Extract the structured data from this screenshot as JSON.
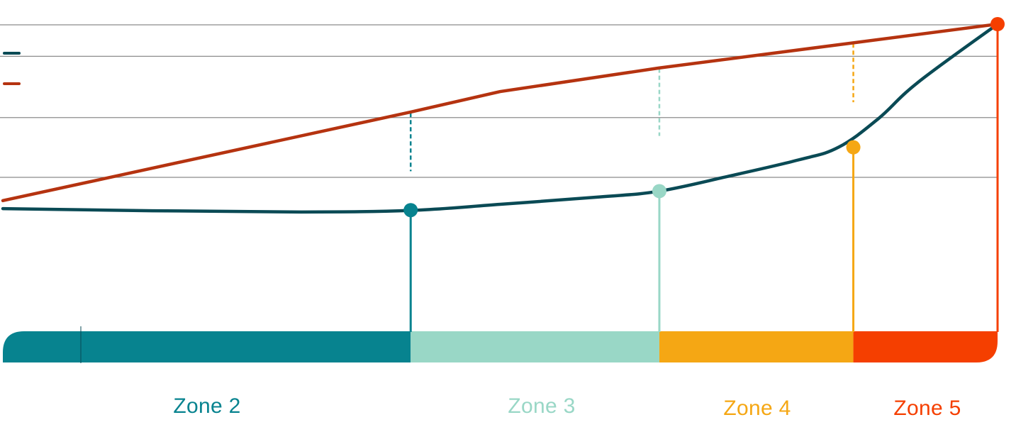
{
  "chart_data": {
    "type": "line",
    "title": "",
    "xlabel": "",
    "ylabel": "",
    "x_range": [
      0,
      100
    ],
    "y_range": [
      0,
      100
    ],
    "grid": true,
    "gridlines_y": [
      50,
      69.5,
      89.5,
      109.5
    ],
    "series": [
      {
        "name": "",
        "color": "#0a4a55",
        "style": "smooth",
        "points": [
          {
            "x": 0,
            "y": 39.8
          },
          {
            "x": 15,
            "y": 39.1
          },
          {
            "x": 30,
            "y": 38.7
          },
          {
            "x": 41,
            "y": 39.2
          },
          {
            "x": 50,
            "y": 41.2
          },
          {
            "x": 60,
            "y": 43.6
          },
          {
            "x": 66,
            "y": 45.5
          },
          {
            "x": 73,
            "y": 50.4
          },
          {
            "x": 80,
            "y": 55.7
          },
          {
            "x": 84,
            "y": 59.8
          },
          {
            "x": 88,
            "y": 69.1
          },
          {
            "x": 92,
            "y": 81.0
          },
          {
            "x": 100,
            "y": 100.0
          }
        ]
      },
      {
        "name": "",
        "color": "#b53310",
        "style": "straight",
        "points": [
          {
            "x": 0,
            "y": 42.4
          },
          {
            "x": 41,
            "y": 71.3
          },
          {
            "x": 50,
            "y": 78.0
          },
          {
            "x": 66,
            "y": 85.7
          },
          {
            "x": 85.5,
            "y": 93.9
          },
          {
            "x": 100,
            "y": 100.0
          }
        ]
      }
    ],
    "markers": [
      {
        "x": 41,
        "y": 39.3,
        "color": "#07838f",
        "zone": "Zone 2",
        "dashed_top": 71.0,
        "dashed_bottom": 52.0
      },
      {
        "x": 66,
        "y": 45.5,
        "color": "#99d7c6",
        "zone": "Zone 3",
        "dashed_top": 85.5,
        "dashed_bottom": 63.5
      },
      {
        "x": 85.5,
        "y": 59.8,
        "color": "#f5a714",
        "zone": "Zone 4",
        "dashed_top": 93.7,
        "dashed_bottom": 74.5
      },
      {
        "x": 100,
        "y": 100.0,
        "color": "#f53f00",
        "zone": "Zone 5",
        "dashed_top": null,
        "dashed_bottom": null
      }
    ],
    "zones": [
      {
        "label": "Zone 2",
        "start": 0,
        "end": 41,
        "color": "#07838f"
      },
      {
        "label": "Zone 3",
        "start": 41,
        "end": 66,
        "color": "#99d7c6"
      },
      {
        "label": "Zone 4",
        "start": 66,
        "end": 85.5,
        "color": "#f5a714"
      },
      {
        "label": "Zone 5",
        "start": 85.5,
        "end": 100,
        "color": "#f53f00"
      }
    ],
    "legend": {
      "placement": "top-left",
      "entries": [
        {
          "label": "",
          "color": "#0a4a55"
        },
        {
          "label": "",
          "color": "#b53310"
        }
      ]
    }
  },
  "zone_labels": {
    "zone2": "Zone 2",
    "zone3": "Zone 3",
    "zone4": "Zone 4",
    "zone5": "Zone 5"
  }
}
